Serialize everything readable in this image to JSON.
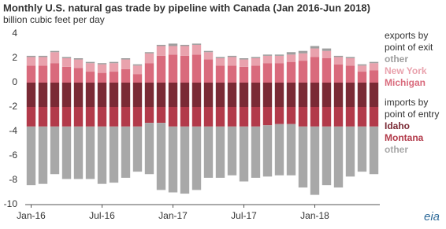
{
  "chart_data": {
    "type": "bar",
    "stacked": true,
    "title": "Monthly U.S. natural gas trade by pipeline with Canada (Jan 2016-Jun 2018)",
    "subtitle": "billion cubic feet per day",
    "legend_titles": [
      "exports by point of exit",
      "imports by point of entry"
    ],
    "logo": "eia",
    "categories": [
      "Jan-16",
      null,
      null,
      null,
      null,
      null,
      "Jul-16",
      null,
      null,
      null,
      null,
      null,
      "Jan-17",
      null,
      null,
      null,
      null,
      null,
      "Jul-17",
      null,
      null,
      null,
      null,
      null,
      "Jan-18",
      null,
      null,
      null,
      null,
      null
    ],
    "series": [
      {
        "name": "Michigan",
        "color": "#d96a7c",
        "values": [
          1.4,
          1.4,
          1.6,
          1.3,
          1.2,
          0.9,
          0.8,
          0.9,
          1.1,
          0.7,
          1.6,
          2.2,
          2.3,
          2.2,
          2.3,
          1.9,
          1.4,
          1.4,
          1.3,
          1.4,
          1.6,
          1.6,
          1.7,
          1.8,
          2.1,
          2.0,
          1.5,
          1.4,
          0.9,
          1.0
        ]
      },
      {
        "name": "New York",
        "color": "#e9a2ad",
        "values": [
          0.7,
          0.7,
          0.9,
          0.7,
          0.7,
          0.7,
          0.7,
          0.7,
          0.8,
          0.7,
          0.8,
          0.8,
          0.7,
          0.8,
          0.8,
          0.6,
          0.6,
          0.7,
          0.6,
          0.6,
          0.6,
          0.6,
          0.6,
          0.6,
          0.7,
          0.6,
          0.6,
          0.6,
          0.5,
          0.6
        ]
      },
      {
        "name": "other",
        "color": "#9e9e9e",
        "values": [
          0.1,
          0.1,
          0.1,
          0.1,
          0.1,
          0.1,
          0.1,
          0.1,
          0.1,
          0.1,
          0.1,
          0.1,
          0.2,
          0.1,
          0.1,
          0.1,
          0.1,
          0.1,
          0.1,
          0.1,
          0.1,
          0.1,
          0.2,
          0.2,
          0.2,
          0.2,
          0.1,
          0.1,
          0.1,
          0.1
        ]
      },
      {
        "name": "Idaho",
        "color": "#7a2a35",
        "values": [
          -2.0,
          -2.0,
          -2.0,
          -2.0,
          -2.0,
          -2.0,
          -2.0,
          -2.0,
          -2.0,
          -2.0,
          -2.0,
          -2.0,
          -2.0,
          -2.0,
          -2.0,
          -2.0,
          -2.0,
          -2.0,
          -2.0,
          -2.0,
          -2.0,
          -2.0,
          -2.0,
          -2.0,
          -2.0,
          -2.0,
          -2.0,
          -2.0,
          -2.0,
          -2.0
        ]
      },
      {
        "name": "Montana",
        "color": "#b23a4a",
        "values": [
          -1.6,
          -1.6,
          -1.6,
          -1.6,
          -1.6,
          -1.6,
          -1.6,
          -1.6,
          -1.6,
          -1.6,
          -1.3,
          -1.3,
          -1.6,
          -1.6,
          -1.6,
          -1.6,
          -1.6,
          -1.6,
          -1.6,
          -1.6,
          -1.5,
          -1.4,
          -1.4,
          -1.6,
          -1.6,
          -1.6,
          -1.6,
          -1.6,
          -1.6,
          -1.6
        ]
      },
      {
        "name": "other",
        "color": "#a8a8a8",
        "values": [
          -4.8,
          -4.7,
          -3.9,
          -4.3,
          -4.3,
          -4.3,
          -4.7,
          -4.6,
          -4.2,
          -3.7,
          -4.2,
          -5.5,
          -5.4,
          -5.5,
          -5.2,
          -4.2,
          -4.2,
          -4.0,
          -4.5,
          -4.2,
          -4.2,
          -4.2,
          -4.2,
          -5.0,
          -5.6,
          -4.8,
          -5.0,
          -4.1,
          -3.7,
          -3.9
        ]
      }
    ],
    "ylim": [
      -10,
      4
    ],
    "yticks": [
      4,
      2,
      0,
      -2,
      -4,
      -6,
      -8,
      -10
    ],
    "grid": false
  }
}
